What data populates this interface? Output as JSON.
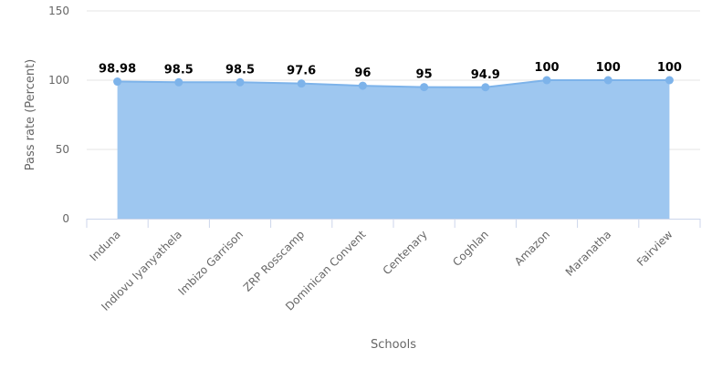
{
  "chart_data": {
    "type": "area",
    "title": "",
    "xlabel": "Schools",
    "ylabel": "Pass rate (Percent)",
    "ylim": [
      0,
      150
    ],
    "yticks": [
      "0",
      "50",
      "100",
      "150"
    ],
    "categories": [
      "Induna",
      "Indlovu Iyanyathela",
      "Imbizo Garrison",
      "ZRP Rosscamp",
      "Dominican Convent",
      "Centenary",
      "Coghlan",
      "Amazon",
      "Maranatha",
      "Fairview"
    ],
    "values": [
      98.98,
      98.5,
      98.5,
      97.6,
      96,
      95,
      94.9,
      100,
      100,
      100
    ],
    "data_labels": [
      "98.98",
      "98.5",
      "98.5",
      "97.6",
      "96",
      "95",
      "94.9",
      "100",
      "100",
      "100"
    ],
    "grid": true,
    "legend": "none",
    "colors": {
      "fill": "#9ec7f0",
      "line": "#7db3ea",
      "point": "#7db3ea",
      "grid": "#e6e6e6",
      "axis": "#ccd6eb"
    }
  }
}
